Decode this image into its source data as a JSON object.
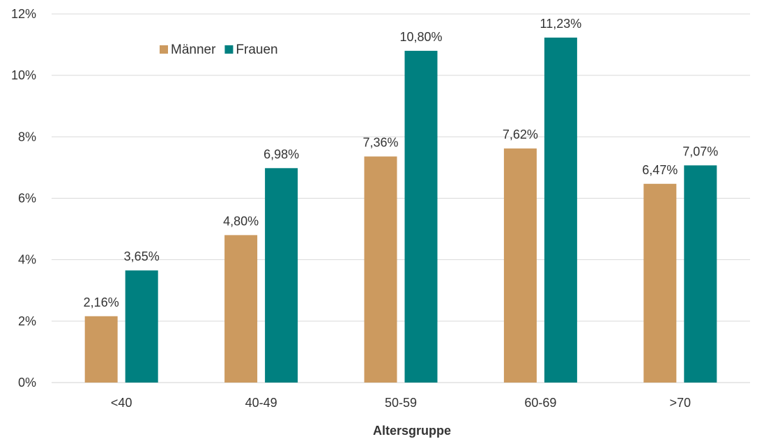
{
  "chart_data": {
    "type": "bar",
    "title": "",
    "xlabel": "Altersgruppe",
    "ylabel": "",
    "categories": [
      "<40",
      "40-49",
      "50-59",
      "60-69",
      ">70"
    ],
    "series": [
      {
        "name": "Männer",
        "color": "#CC9A5F",
        "values": [
          2.16,
          4.8,
          7.36,
          7.62,
          6.47
        ],
        "labels": [
          "2,16%",
          "4,80%",
          "7,36%",
          "7,62%",
          "6,47%"
        ]
      },
      {
        "name": "Frauen",
        "color": "#008080",
        "values": [
          3.65,
          6.98,
          10.8,
          11.23,
          7.07
        ],
        "labels": [
          "3,65%",
          "6,98%",
          "10,80%",
          "11,23%",
          "7,07%"
        ]
      }
    ],
    "ylim": [
      0,
      12
    ],
    "yticks": [
      0,
      2,
      4,
      6,
      8,
      10,
      12
    ],
    "ytick_labels": [
      "0%",
      "2%",
      "4%",
      "6%",
      "8%",
      "10%",
      "12%"
    ],
    "grid": true,
    "legend_position": "top-left"
  }
}
